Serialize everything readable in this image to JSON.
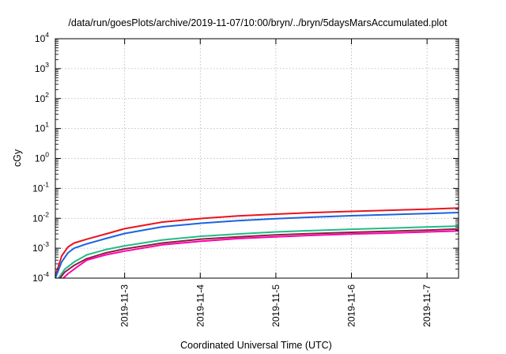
{
  "chart_data": {
    "type": "line",
    "title": "/data/run/goesPlots/archive/2019-11-07/10:00/bryn/../bryn/5daysMarsAccumulated.plot",
    "xlabel": "Coordinated Universal Time (UTC)",
    "ylabel": "cGy",
    "x_scale": "time",
    "y_scale": "log",
    "xlim": [
      "2019-11-02T02:00",
      "2019-11-07T10:00"
    ],
    "ylim": [
      0.0001,
      10000
    ],
    "grid": true,
    "legend": "none",
    "x_ticks": [
      {
        "t": "2019-11-03T00:00",
        "label": "2019-11-3"
      },
      {
        "t": "2019-11-04T00:00",
        "label": "2019-11-4"
      },
      {
        "t": "2019-11-05T00:00",
        "label": "2019-11-5"
      },
      {
        "t": "2019-11-06T00:00",
        "label": "2019-11-6"
      },
      {
        "t": "2019-11-07T00:00",
        "label": "2019-11-7"
      }
    ],
    "y_ticks": [
      {
        "value": 0.0001,
        "base": "10",
        "exp": "-4"
      },
      {
        "value": 0.001,
        "base": "10",
        "exp": "-3"
      },
      {
        "value": 0.01,
        "base": "10",
        "exp": "-2"
      },
      {
        "value": 0.1,
        "base": "10",
        "exp": "-1"
      },
      {
        "value": 1,
        "base": "10",
        "exp": "0"
      },
      {
        "value": 10,
        "base": "10",
        "exp": "1"
      },
      {
        "value": 100,
        "base": "10",
        "exp": "2"
      },
      {
        "value": 1000,
        "base": "10",
        "exp": "3"
      },
      {
        "value": 10000,
        "base": "10",
        "exp": "4"
      }
    ],
    "series": [
      {
        "color": "#e8141e",
        "x": [
          "2019-11-02T02:00",
          "2019-11-02T04:00",
          "2019-11-02T06:00",
          "2019-11-02T08:00",
          "2019-11-02T12:00",
          "2019-11-02T18:00",
          "2019-11-03T00:00",
          "2019-11-03T12:00",
          "2019-11-04T00:00",
          "2019-11-04T12:00",
          "2019-11-05T00:00",
          "2019-11-05T12:00",
          "2019-11-06T00:00",
          "2019-11-06T12:00",
          "2019-11-07T00:00",
          "2019-11-07T10:00"
        ],
        "y": [
          0.00012,
          0.00055,
          0.0011,
          0.0015,
          0.002,
          0.003,
          0.0045,
          0.0075,
          0.0098,
          0.012,
          0.0138,
          0.0155,
          0.017,
          0.0185,
          0.02,
          0.022
        ]
      },
      {
        "color": "#1a64e0",
        "x": [
          "2019-11-02T02:00",
          "2019-11-02T04:00",
          "2019-11-02T06:00",
          "2019-11-02T08:00",
          "2019-11-02T12:00",
          "2019-11-02T18:00",
          "2019-11-03T00:00",
          "2019-11-03T12:00",
          "2019-11-04T00:00",
          "2019-11-04T12:00",
          "2019-11-05T00:00",
          "2019-11-05T12:00",
          "2019-11-06T00:00",
          "2019-11-06T12:00",
          "2019-11-07T00:00",
          "2019-11-07T10:00"
        ],
        "y": [
          0.0001,
          0.00035,
          0.0007,
          0.001,
          0.0014,
          0.0021,
          0.0031,
          0.0052,
          0.0068,
          0.0083,
          0.0097,
          0.011,
          0.0122,
          0.0133,
          0.0144,
          0.0155
        ]
      },
      {
        "color": "#22bb88",
        "x": [
          "2019-11-02T03:00",
          "2019-11-02T05:00",
          "2019-11-02T08:00",
          "2019-11-02T12:00",
          "2019-11-02T18:00",
          "2019-11-03T00:00",
          "2019-11-03T12:00",
          "2019-11-04T00:00",
          "2019-11-04T12:00",
          "2019-11-05T00:00",
          "2019-11-05T12:00",
          "2019-11-06T00:00",
          "2019-11-06T12:00",
          "2019-11-07T00:00",
          "2019-11-07T10:00"
        ],
        "y": [
          0.0001,
          0.0002,
          0.00035,
          0.0006,
          0.0009,
          0.0012,
          0.0019,
          0.0025,
          0.003,
          0.0035,
          0.0039,
          0.0043,
          0.0047,
          0.0051,
          0.0055
        ]
      },
      {
        "color": "#8a2040",
        "x": [
          "2019-11-02T03:30",
          "2019-11-02T05:00",
          "2019-11-02T08:00",
          "2019-11-02T12:00",
          "2019-11-02T18:00",
          "2019-11-03T00:00",
          "2019-11-03T12:00",
          "2019-11-04T00:00",
          "2019-11-04T12:00",
          "2019-11-05T00:00",
          "2019-11-05T12:00",
          "2019-11-06T00:00",
          "2019-11-06T12:00",
          "2019-11-07T00:00",
          "2019-11-07T10:00"
        ],
        "y": [
          0.0001,
          0.00016,
          0.00027,
          0.00045,
          0.0007,
          0.00095,
          0.0015,
          0.002,
          0.0024,
          0.0028,
          0.0031,
          0.0034,
          0.0037,
          0.004,
          0.0044
        ]
      },
      {
        "color": "#ff00aa",
        "x": [
          "2019-11-02T04:30",
          "2019-11-02T06:00",
          "2019-11-02T09:00",
          "2019-11-02T12:00",
          "2019-11-02T18:00",
          "2019-11-03T00:00",
          "2019-11-03T12:00",
          "2019-11-04T00:00",
          "2019-11-04T12:00",
          "2019-11-05T00:00",
          "2019-11-05T12:00",
          "2019-11-06T00:00",
          "2019-11-06T12:00",
          "2019-11-07T00:00",
          "2019-11-07T10:00"
        ],
        "y": [
          0.0001,
          0.00014,
          0.00024,
          0.0004,
          0.0006,
          0.0008,
          0.0013,
          0.0017,
          0.0021,
          0.0024,
          0.0027,
          0.003,
          0.0032,
          0.0035,
          0.0038
        ]
      }
    ]
  }
}
